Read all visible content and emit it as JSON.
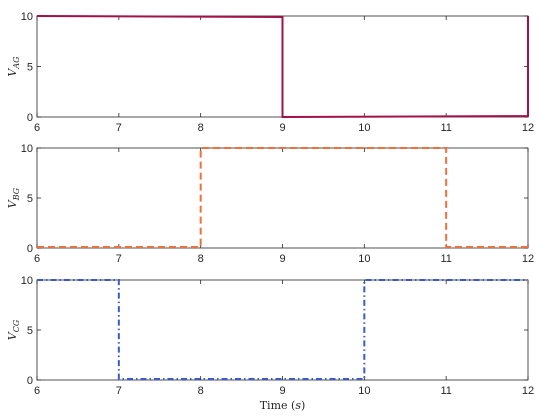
{
  "chart_data": [
    {
      "type": "line",
      "ylabel": "V_AG",
      "xlim": [
        6,
        12
      ],
      "ylim": [
        0,
        10
      ],
      "xticks": [
        6,
        7,
        8,
        9,
        10,
        11,
        12
      ],
      "yticks": [
        0,
        5,
        10
      ],
      "grid": false,
      "series": [
        {
          "line_style": "solid",
          "color": "#a2114a",
          "x": [
            6,
            9,
            9,
            12,
            12
          ],
          "y": [
            10,
            9.9,
            0,
            0.1,
            10
          ]
        }
      ]
    },
    {
      "type": "line",
      "ylabel": "V_BG",
      "xlim": [
        6,
        12
      ],
      "ylim": [
        0,
        10
      ],
      "xticks": [
        6,
        7,
        8,
        9,
        10,
        11,
        12
      ],
      "yticks": [
        0,
        5,
        10
      ],
      "grid": false,
      "series": [
        {
          "line_style": "dashed",
          "color": "#f0703a",
          "x": [
            6,
            8,
            8,
            11,
            11,
            12
          ],
          "y": [
            0.1,
            0.1,
            10,
            10,
            0.1,
            0.1
          ]
        }
      ]
    },
    {
      "type": "line",
      "ylabel": "V_CG",
      "xlabel": "Time (s)",
      "xlim": [
        6,
        12
      ],
      "ylim": [
        0,
        10
      ],
      "xticks": [
        6,
        7,
        8,
        9,
        10,
        11,
        12
      ],
      "yticks": [
        0,
        5,
        10
      ],
      "grid": false,
      "series": [
        {
          "line_style": "dashdot",
          "color": "#3a5bc7",
          "x": [
            6,
            7,
            7,
            10,
            10,
            12
          ],
          "y": [
            10,
            10,
            0.1,
            0.1,
            10,
            10
          ]
        }
      ]
    }
  ]
}
